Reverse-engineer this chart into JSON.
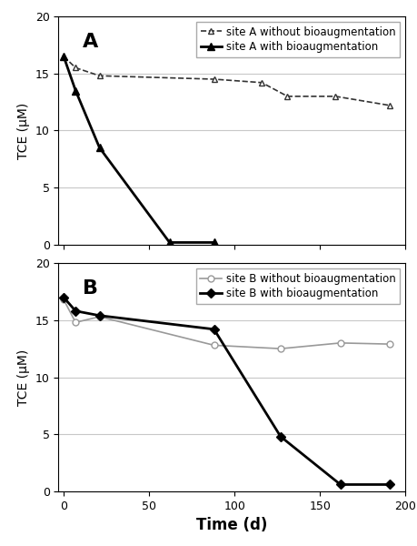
{
  "panel_A": {
    "without_bio": {
      "x": [
        0,
        7,
        21,
        88,
        116,
        131,
        159,
        191
      ],
      "y": [
        16.5,
        15.5,
        14.8,
        14.5,
        14.2,
        13.0,
        13.0,
        12.2
      ],
      "label": "site A without bioaugmentation",
      "color": "#333333",
      "linestyle": "dashed",
      "marker": "^",
      "markerfacecolor": "white",
      "markersize": 5,
      "linewidth": 1.2
    },
    "with_bio": {
      "x": [
        0,
        7,
        21,
        62,
        88
      ],
      "y": [
        16.5,
        13.5,
        8.5,
        0.2,
        0.2
      ],
      "label": "site A with bioaugmentation",
      "color": "#000000",
      "linestyle": "solid",
      "marker": "^",
      "markerfacecolor": "black",
      "markersize": 6,
      "linewidth": 2.0
    },
    "panel_label": "A",
    "ylabel": "TCE (μM)",
    "ylim": [
      0,
      20
    ],
    "yticks": [
      0,
      5,
      10,
      15,
      20
    ],
    "xlim": [
      -3,
      200
    ]
  },
  "panel_B": {
    "without_bio": {
      "x": [
        0,
        7,
        21,
        88,
        127,
        162,
        191
      ],
      "y": [
        16.8,
        14.8,
        15.3,
        12.8,
        12.5,
        13.0,
        12.9
      ],
      "label": "site B without bioaugmentation",
      "color": "#999999",
      "linestyle": "solid",
      "marker": "o",
      "markerfacecolor": "white",
      "markersize": 5,
      "linewidth": 1.2
    },
    "with_bio": {
      "x": [
        0,
        7,
        21,
        88,
        127,
        162,
        191
      ],
      "y": [
        17.0,
        15.8,
        15.4,
        14.2,
        4.8,
        0.6,
        0.6
      ],
      "label": "site B with bioaugmentation",
      "color": "#000000",
      "linestyle": "solid",
      "marker": "D",
      "markerfacecolor": "black",
      "markersize": 5,
      "linewidth": 2.0
    },
    "panel_label": "B",
    "ylabel": "TCE (μM)",
    "xlabel": "Time (d)",
    "ylim": [
      0,
      20
    ],
    "yticks": [
      0,
      5,
      10,
      15,
      20
    ],
    "xlim": [
      -3,
      200
    ]
  },
  "xticks": [
    0,
    50,
    100,
    150,
    200
  ],
  "grid_color": "#c8c8c8",
  "background_color": "#ffffff",
  "figure_facecolor": "#ffffff",
  "ylabel_fontsize": 10,
  "xlabel_fontsize": 12,
  "panel_label_fontsize": 16,
  "legend_fontsize": 8.5,
  "tick_fontsize": 9
}
